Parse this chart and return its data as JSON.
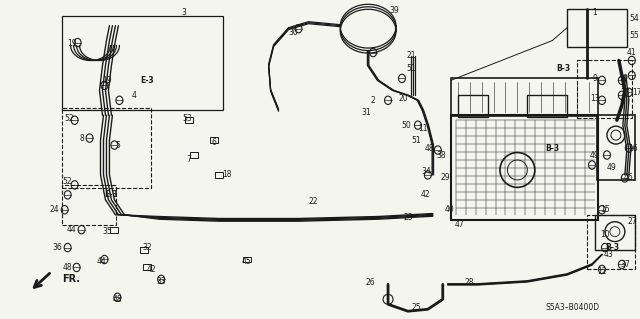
{
  "background_color": "#f5f5f0",
  "line_color": "#1a1a1a",
  "figsize": [
    6.4,
    3.19
  ],
  "dpi": 100,
  "diagram_code": "S5A3–B0400D"
}
